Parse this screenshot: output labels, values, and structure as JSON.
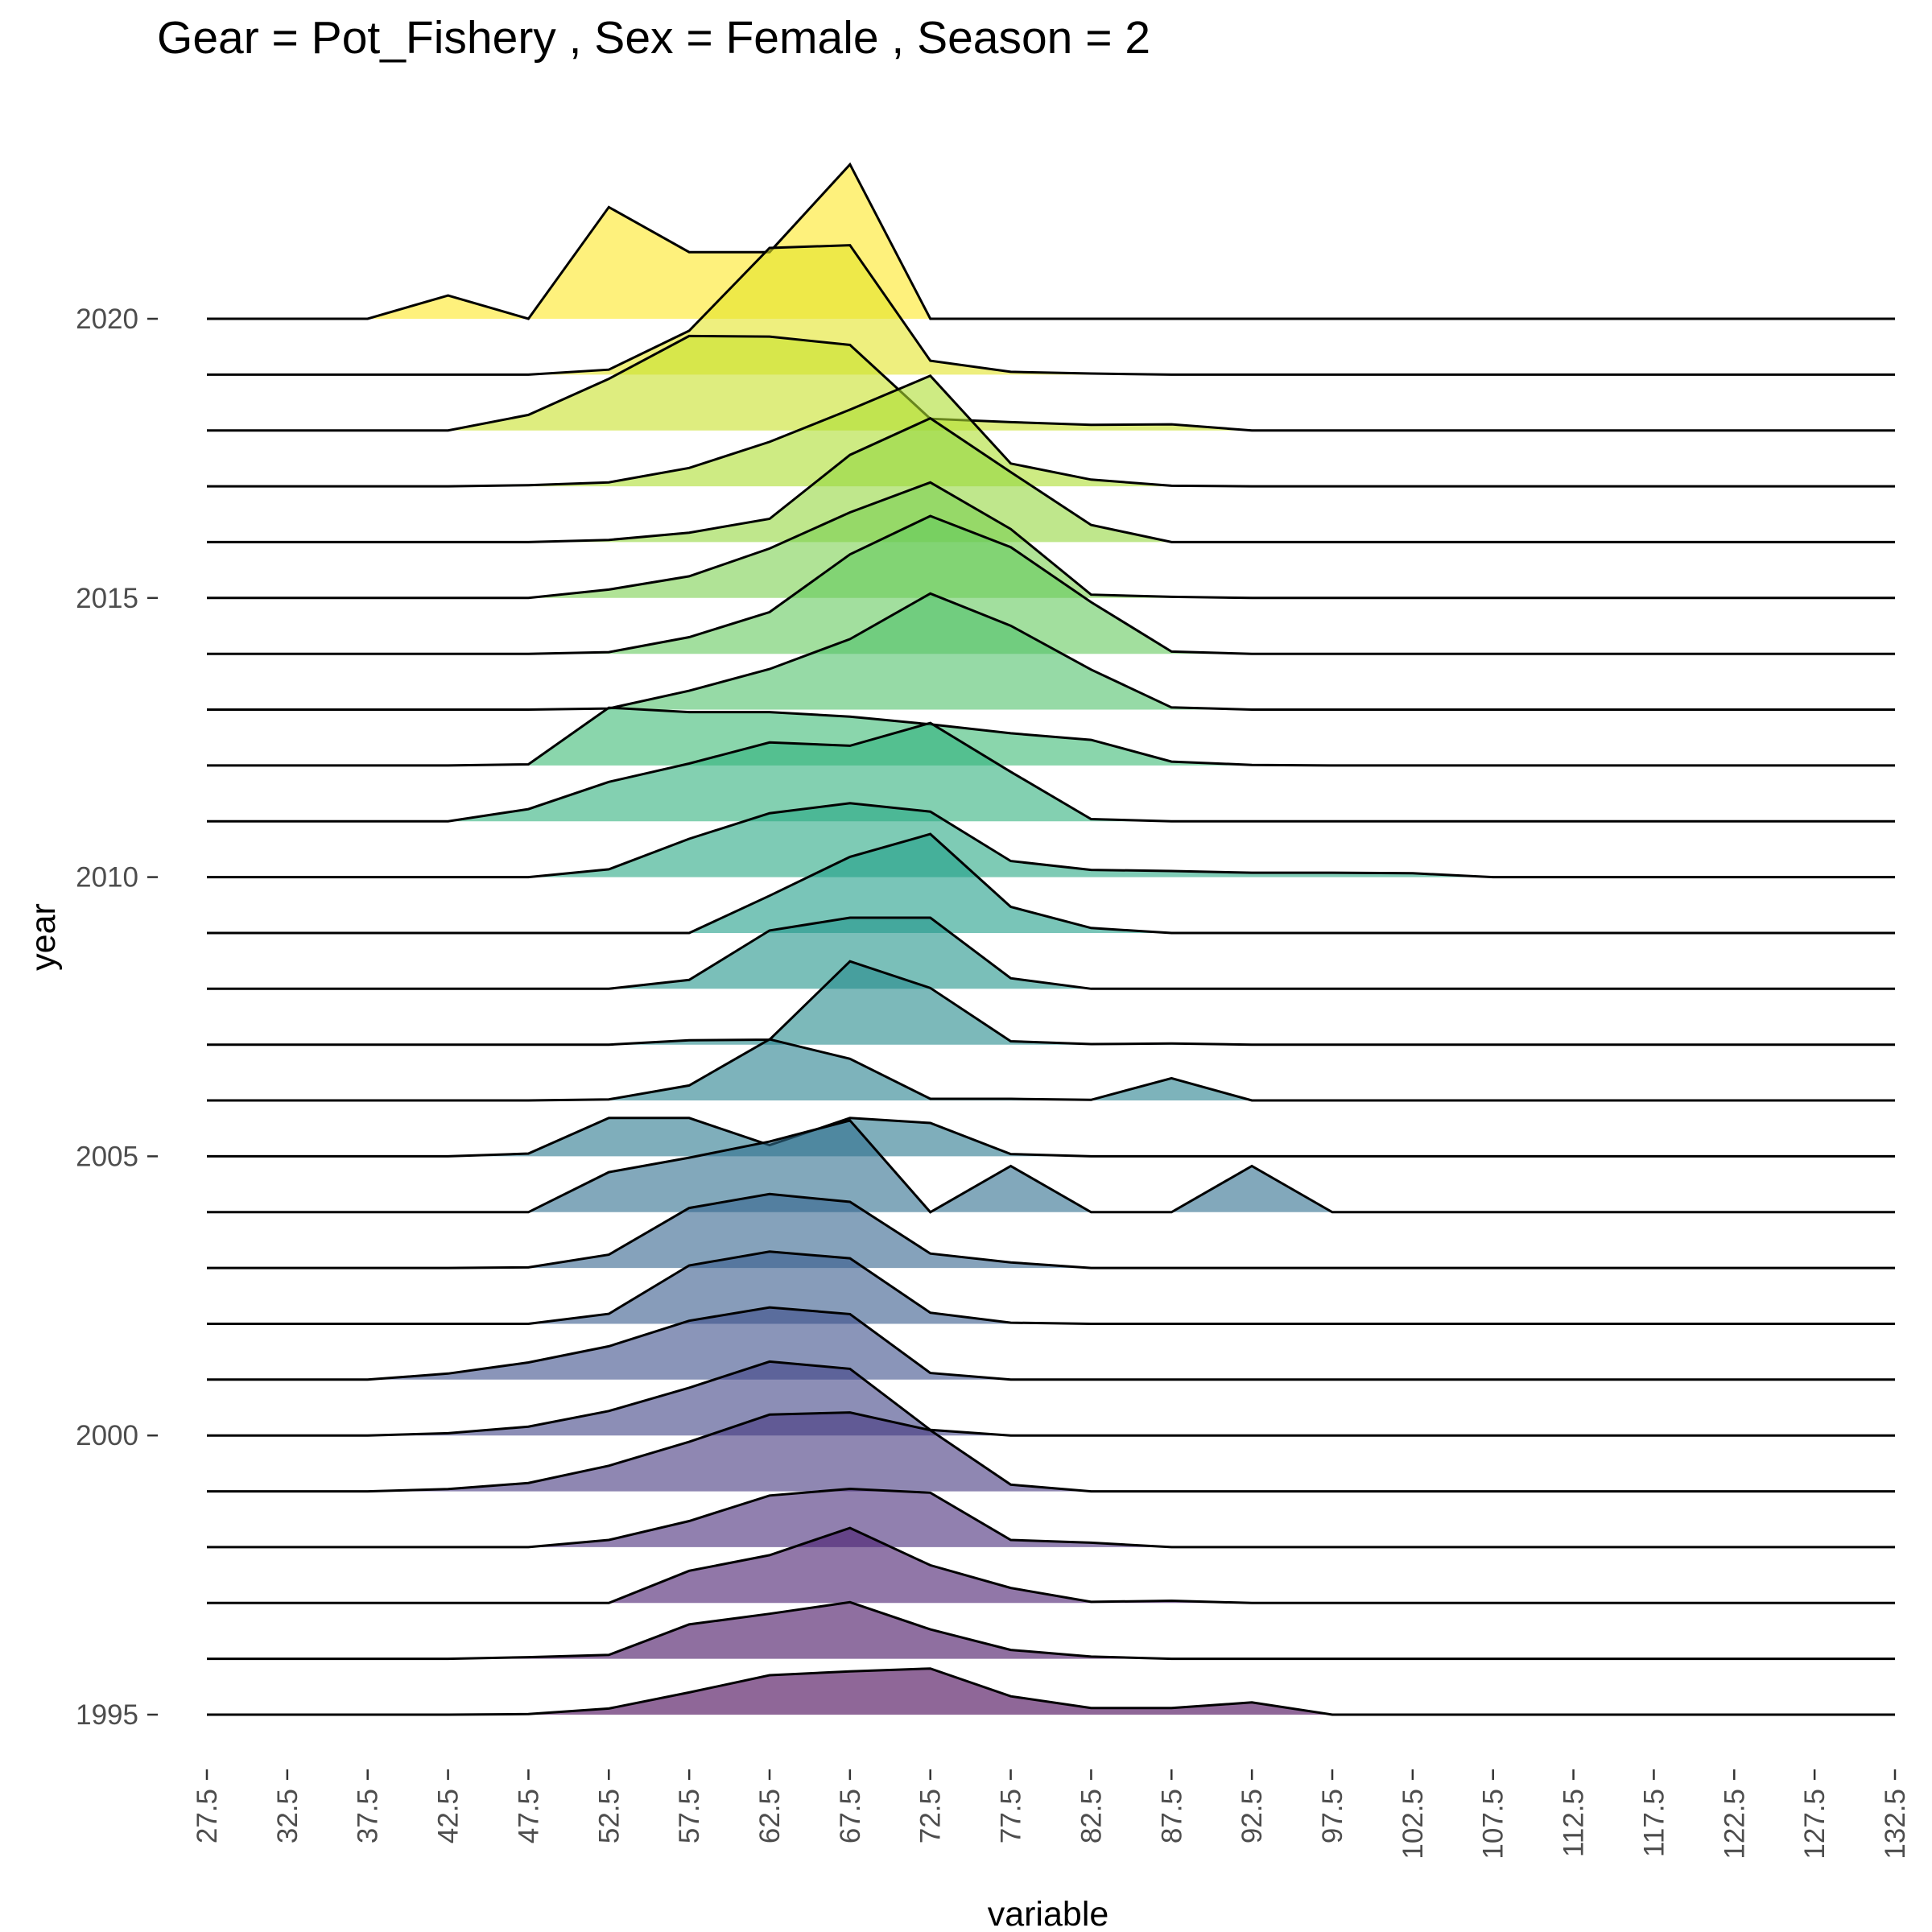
{
  "chart_data": {
    "type": "ridgeline",
    "title": "Gear = Pot_Fishery , Sex = Female , Season = 2",
    "xlabel": "variable",
    "ylabel": "year",
    "x_ticks": [
      "27.5",
      "32.5",
      "37.5",
      "42.5",
      "47.5",
      "52.5",
      "57.5",
      "62.5",
      "67.5",
      "72.5",
      "77.5",
      "82.5",
      "87.5",
      "92.5",
      "97.5",
      "102.5",
      "107.5",
      "112.5",
      "117.5",
      "122.5",
      "127.5",
      "132.5"
    ],
    "xlim": [
      27.5,
      132.5
    ],
    "y_ticks": [
      "1995",
      "2000",
      "2005",
      "2010",
      "2015",
      "2020"
    ],
    "ylim": [
      1995,
      2020
    ],
    "grid": false,
    "legend": "none",
    "fill_alpha": 0.6,
    "colors": {
      "low": "#440154",
      "high": "#FDE725",
      "line": "#000000"
    },
    "x": [
      27.5,
      32.5,
      37.5,
      42.5,
      47.5,
      52.5,
      57.5,
      62.5,
      67.5,
      72.5,
      77.5,
      82.5,
      87.5,
      92.5,
      97.5,
      102.5,
      107.5,
      112.5,
      117.5,
      122.5,
      127.5,
      132.5
    ],
    "series": [
      {
        "year": 1995,
        "values": [
          0,
          0,
          0,
          0,
          0.01,
          0.11,
          0.4,
          0.71,
          0.78,
          0.83,
          0.33,
          0.12,
          0.12,
          0.22,
          0,
          0,
          0,
          0,
          0,
          0,
          0,
          0
        ]
      },
      {
        "year": 1996,
        "values": [
          0,
          0,
          0,
          0,
          0.03,
          0.07,
          0.62,
          0.81,
          1.02,
          0.53,
          0.16,
          0.04,
          0,
          0,
          0,
          0,
          0,
          0,
          0,
          0,
          0,
          0
        ]
      },
      {
        "year": 1997,
        "values": [
          0,
          0,
          0,
          0,
          0,
          0,
          0.58,
          0.86,
          1.35,
          0.68,
          0.27,
          0.02,
          0.04,
          0,
          0,
          0,
          0,
          0,
          0,
          0,
          0,
          0
        ]
      },
      {
        "year": 1998,
        "values": [
          0,
          0,
          0,
          0,
          0,
          0.13,
          0.47,
          0.93,
          1.05,
          0.98,
          0.13,
          0.08,
          0,
          0,
          0,
          0,
          0,
          0,
          0,
          0,
          0,
          0
        ]
      },
      {
        "year": 1999,
        "values": [
          0,
          0,
          0,
          0.04,
          0.15,
          0.46,
          0.89,
          1.38,
          1.42,
          1.1,
          0.12,
          0,
          0,
          0,
          0,
          0,
          0,
          0,
          0,
          0,
          0,
          0
        ]
      },
      {
        "year": 2000,
        "values": [
          0,
          0,
          0,
          0.04,
          0.16,
          0.44,
          0.86,
          1.33,
          1.2,
          0.1,
          0,
          0,
          0,
          0,
          0,
          0,
          0,
          0,
          0,
          0,
          0,
          0
        ]
      },
      {
        "year": 2001,
        "values": [
          0,
          0,
          0,
          0.11,
          0.31,
          0.6,
          1.06,
          1.3,
          1.18,
          0.12,
          0,
          0,
          0,
          0,
          0,
          0,
          0,
          0,
          0,
          0,
          0,
          0
        ]
      },
      {
        "year": 2002,
        "values": [
          0,
          0,
          0,
          0,
          0,
          0.18,
          1.05,
          1.3,
          1.18,
          0.2,
          0.02,
          0,
          0,
          0,
          0,
          0,
          0,
          0,
          0,
          0,
          0,
          0
        ]
      },
      {
        "year": 2003,
        "values": [
          0,
          0,
          0,
          0,
          0.01,
          0.24,
          1.08,
          1.33,
          1.19,
          0.26,
          0.1,
          0,
          0,
          0,
          0,
          0,
          0,
          0,
          0,
          0,
          0,
          0
        ]
      },
      {
        "year": 2004,
        "values": [
          0,
          0,
          0,
          0,
          0,
          0.72,
          0.98,
          1.27,
          1.65,
          0,
          0.83,
          0,
          0,
          0.83,
          0,
          0,
          0,
          0,
          0,
          0,
          0,
          0
        ]
      },
      {
        "year": 2005,
        "values": [
          0,
          0,
          0,
          0,
          0.05,
          0.69,
          0.69,
          0.2,
          0.69,
          0.6,
          0.04,
          0,
          0,
          0,
          0,
          0,
          0,
          0,
          0,
          0,
          0,
          0
        ]
      },
      {
        "year": 2006,
        "values": [
          0,
          0,
          0,
          0,
          0,
          0.02,
          0.27,
          1.1,
          0.75,
          0.03,
          0.03,
          0.01,
          0.4,
          0,
          0,
          0,
          0,
          0,
          0,
          0,
          0,
          0
        ]
      },
      {
        "year": 2007,
        "values": [
          0,
          0,
          0,
          0,
          0,
          0,
          0.08,
          0.09,
          1.5,
          1.02,
          0.06,
          0.01,
          0.02,
          0,
          0,
          0,
          0,
          0,
          0,
          0,
          0,
          0
        ]
      },
      {
        "year": 2008,
        "values": [
          0,
          0,
          0,
          0,
          0,
          0,
          0.16,
          1.05,
          1.28,
          1.28,
          0.19,
          0,
          0,
          0,
          0,
          0,
          0,
          0,
          0,
          0,
          0,
          0
        ]
      },
      {
        "year": 2009,
        "values": [
          0,
          0,
          0,
          0,
          0,
          0,
          0,
          0.67,
          1.37,
          1.78,
          0.47,
          0.09,
          0,
          0,
          0,
          0,
          0,
          0,
          0,
          0,
          0,
          0
        ]
      },
      {
        "year": 2010,
        "values": [
          0,
          0,
          0,
          0,
          0,
          0.14,
          0.69,
          1.15,
          1.33,
          1.18,
          0.29,
          0.13,
          0.11,
          0.08,
          0.08,
          0.07,
          0,
          0,
          0,
          0,
          0,
          0
        ]
      },
      {
        "year": 2011,
        "values": [
          0,
          0,
          0,
          0,
          0.22,
          0.71,
          1.04,
          1.42,
          1.36,
          1.77,
          0.89,
          0.04,
          0,
          0,
          0,
          0,
          0,
          0,
          0,
          0,
          0,
          0
        ]
      },
      {
        "year": 2012,
        "values": [
          0,
          0,
          0,
          0,
          0.02,
          1.04,
          0.96,
          0.96,
          0.88,
          0.74,
          0.58,
          0.46,
          0.07,
          0.01,
          0,
          0,
          0,
          0,
          0,
          0,
          0,
          0
        ]
      },
      {
        "year": 2013,
        "values": [
          0,
          0,
          0,
          0,
          0,
          0.02,
          0.34,
          0.73,
          1.27,
          2.09,
          1.51,
          0.72,
          0.04,
          0,
          0,
          0,
          0,
          0,
          0,
          0,
          0,
          0
        ]
      },
      {
        "year": 2014,
        "values": [
          0,
          0,
          0,
          0,
          0,
          0.03,
          0.3,
          0.75,
          1.79,
          2.48,
          1.92,
          0.93,
          0.04,
          0,
          0,
          0,
          0,
          0,
          0,
          0,
          0,
          0
        ]
      },
      {
        "year": 2015,
        "values": [
          0,
          0,
          0,
          0,
          0,
          0.15,
          0.39,
          0.89,
          1.54,
          2.08,
          1.24,
          0.06,
          0.02,
          0,
          0,
          0,
          0,
          0,
          0,
          0,
          0,
          0
        ]
      },
      {
        "year": 2016,
        "values": [
          0,
          0,
          0,
          0,
          0,
          0.04,
          0.17,
          0.42,
          1.57,
          2.23,
          1.26,
          0.31,
          0,
          0,
          0,
          0,
          0,
          0,
          0,
          0,
          0,
          0
        ]
      },
      {
        "year": 2017,
        "values": [
          0,
          0,
          0,
          0,
          0.02,
          0.07,
          0.33,
          0.8,
          1.38,
          1.99,
          0.41,
          0.12,
          0.01,
          0,
          0,
          0,
          0,
          0,
          0,
          0,
          0,
          0
        ]
      },
      {
        "year": 2018,
        "values": [
          0,
          0,
          0,
          0,
          0.28,
          0.93,
          1.7,
          1.69,
          1.54,
          0.21,
          0.15,
          0.1,
          0.11,
          0,
          0,
          0,
          0,
          0,
          0,
          0,
          0,
          0
        ]
      },
      {
        "year": 2019,
        "values": [
          0,
          0,
          0,
          0,
          0,
          0.09,
          0.79,
          2.28,
          2.33,
          0.25,
          0.05,
          0.02,
          0,
          0,
          0,
          0,
          0,
          0,
          0,
          0,
          0,
          0
        ]
      },
      {
        "year": 2020,
        "values": [
          0,
          0,
          0,
          0.42,
          0,
          2.01,
          1.2,
          1.2,
          2.78,
          0,
          0,
          0,
          0,
          0,
          0,
          0,
          0,
          0,
          0,
          0,
          0,
          0
        ]
      }
    ]
  }
}
